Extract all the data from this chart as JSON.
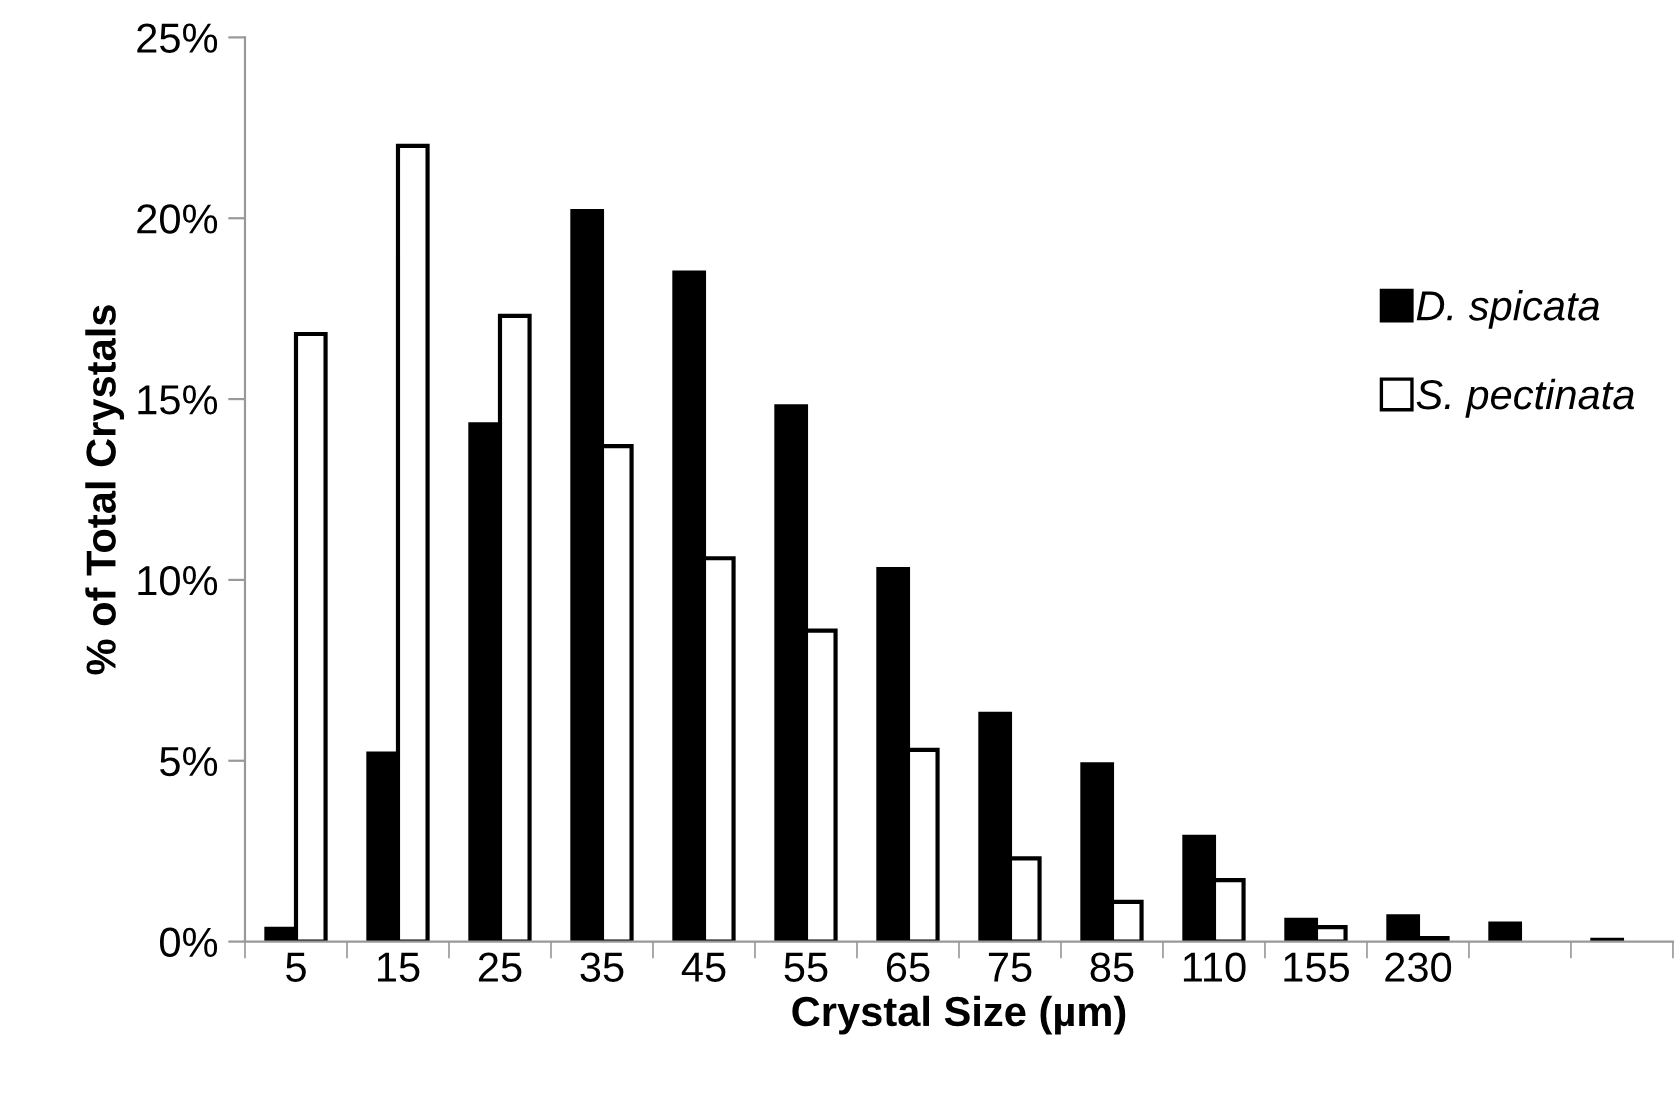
{
  "chart_data": {
    "type": "bar",
    "xlabel": "Crystal Size (µm)",
    "ylabel": "% of Total Crystals",
    "categories": [
      "5",
      "15",
      "25",
      "35",
      "45",
      "55",
      "65",
      "75",
      "85",
      "110",
      "155",
      "230",
      null,
      null
    ],
    "series": [
      {
        "name": "D. spicata",
        "color": "#000000",
        "values": [
          0.35,
          5.2,
          14.3,
          20.2,
          18.5,
          14.8,
          10.3,
          6.3,
          4.9,
          2.9,
          0.6,
          0.7,
          0.5,
          0.05
        ]
      },
      {
        "name": "S. pectinata",
        "color": "#ffffff",
        "values": [
          16.8,
          22.0,
          17.3,
          13.7,
          10.6,
          8.6,
          5.3,
          2.3,
          1.1,
          1.7,
          0.4,
          0.1,
          null,
          null
        ]
      }
    ],
    "ylim": [
      0,
      25
    ],
    "yticks": [
      {
        "value": 0,
        "label": "0%"
      },
      {
        "value": 5,
        "label": "5%"
      },
      {
        "value": 10,
        "label": "10%"
      },
      {
        "value": 15,
        "label": "15%"
      },
      {
        "value": 20,
        "label": "20%"
      },
      {
        "value": 25,
        "label": "25%"
      }
    ],
    "grid": false,
    "legend": "right"
  }
}
